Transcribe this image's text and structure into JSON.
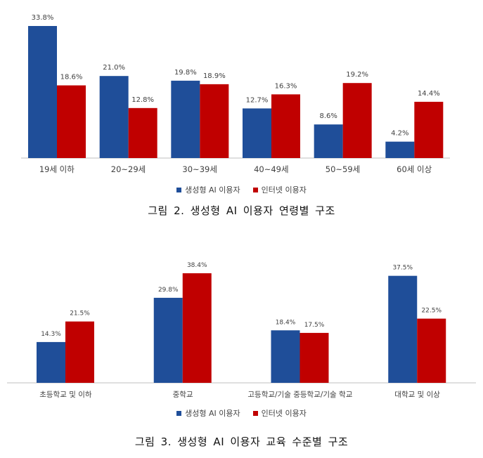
{
  "colors": {
    "ai": "#1f4e99",
    "internet": "#c00000",
    "axis": "#bfbfbf",
    "label": "#404040"
  },
  "chart_data": [
    {
      "type": "bar",
      "title": "그림 2. 생성형 AI 이용자 연령별 구조",
      "categories": [
        "19세 이하",
        "20~29세",
        "30~39세",
        "40~49세",
        "50~59세",
        "60세 이상"
      ],
      "series": [
        {
          "name": "생성형 AI 이용자",
          "values": [
            33.8,
            21.0,
            19.8,
            12.7,
            8.6,
            4.2
          ]
        },
        {
          "name": "인터넷 이용자",
          "values": [
            18.6,
            12.8,
            18.9,
            16.3,
            19.2,
            14.4
          ]
        }
      ],
      "ylim": [
        0,
        35
      ],
      "grid": false,
      "legend": "bottom"
    },
    {
      "type": "bar",
      "title": "그림 3. 생성형 AI 이용자 교육 수준별 구조",
      "categories": [
        "초등학교 및 이하",
        "중학교",
        "고등학교/기술 중등학교/기술 학교",
        "대학교 및 이상"
      ],
      "series": [
        {
          "name": "생성형 AI 이용자",
          "values": [
            14.3,
            29.8,
            18.4,
            37.5
          ]
        },
        {
          "name": "인터넷 이용자",
          "values": [
            21.5,
            38.4,
            17.5,
            22.5
          ]
        }
      ],
      "ylim": [
        0,
        40
      ],
      "grid": false,
      "legend": "bottom"
    }
  ]
}
